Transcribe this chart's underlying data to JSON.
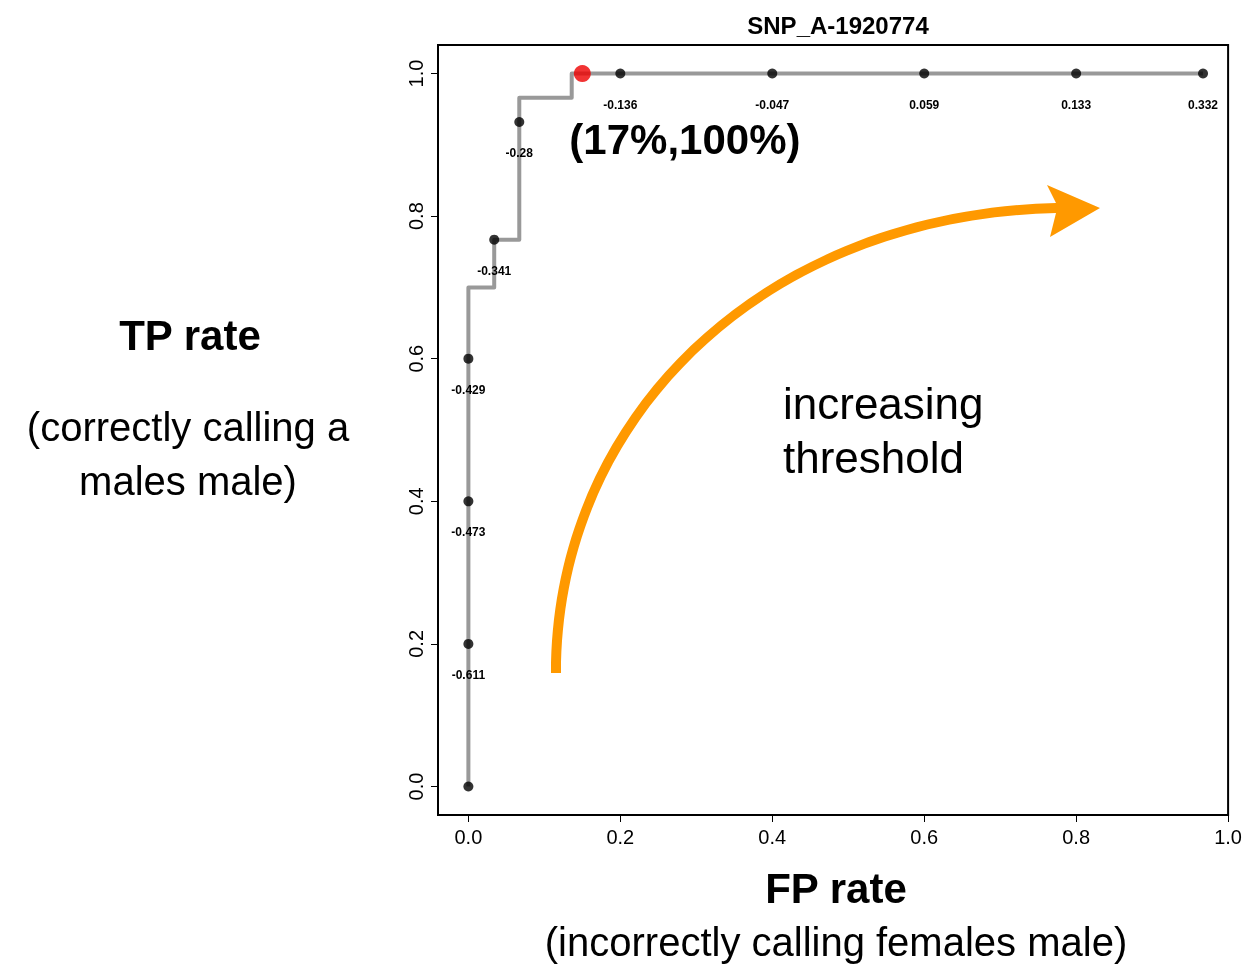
{
  "chart_data": {
    "type": "step",
    "title": "SNP_A-1920774",
    "xlabel": "FP rate",
    "ylabel": "TP rate",
    "annotations": [
      "(correctly calling a males male)",
      "(incorrectly calling females male)",
      {
        "text": "(17%,100%)",
        "x": 0.15,
        "y": 1.0
      },
      "increasing threshold",
      {
        "text": "-0.611",
        "x": 0,
        "y": 0.2
      },
      {
        "text": "-0.473",
        "x": 0,
        "y": 0.4
      },
      {
        "text": "-0.429",
        "x": 0,
        "y": 0.6
      },
      {
        "text": "-0.341",
        "x": 0.034,
        "y": 0.767
      },
      {
        "text": "-0.28",
        "x": 0.067,
        "y": 0.932
      },
      {
        "text": "-0.136",
        "x": 0.2,
        "y": 1.0
      },
      {
        "text": "-0.047",
        "x": 0.4,
        "y": 1.0
      },
      {
        "text": "0.059",
        "x": 0.6,
        "y": 1.0
      },
      {
        "text": "0.133",
        "x": 0.8,
        "y": 1.0
      },
      {
        "text": "0.332",
        "x": 0.967,
        "y": 1.0
      }
    ],
    "xlim": [
      -0.04,
      1.0
    ],
    "ylim": [
      -0.04,
      1.04
    ],
    "xticks": [
      {
        "value": 0,
        "label": "0.0"
      },
      0.2,
      0.4,
      0.6,
      0.8,
      {
        "value": 1,
        "label": "1.0"
      }
    ],
    "yticks": [
      {
        "value": 0,
        "label": "0.0"
      },
      0.2,
      0.4,
      0.6,
      0.8,
      {
        "value": 1,
        "label": "1.0"
      }
    ],
    "series": [
      {
        "color": "#999999",
        "marker": "none",
        "x": [
          0,
          0,
          0.034,
          0.067,
          0.136,
          0.967
        ],
        "values": [
          0,
          0.7,
          0.767,
          0.966,
          1.0,
          1.0
        ]
      },
      {
        "type": "scatter",
        "color": "#000000",
        "marker": "circle",
        "x": [
          0,
          0,
          0,
          0,
          0.034,
          0.067,
          0.2,
          0.4,
          0.6,
          0.8,
          0.967
        ],
        "values": [
          0,
          0.2,
          0.4,
          0.6,
          0.767,
          0.932,
          1.0,
          1.0,
          1.0,
          1.0,
          1.0
        ]
      },
      {
        "type": "scatter",
        "color": "#ee0000",
        "marker": "circle",
        "x": [
          0.15
        ],
        "values": [
          1.0
        ]
      }
    ]
  }
}
